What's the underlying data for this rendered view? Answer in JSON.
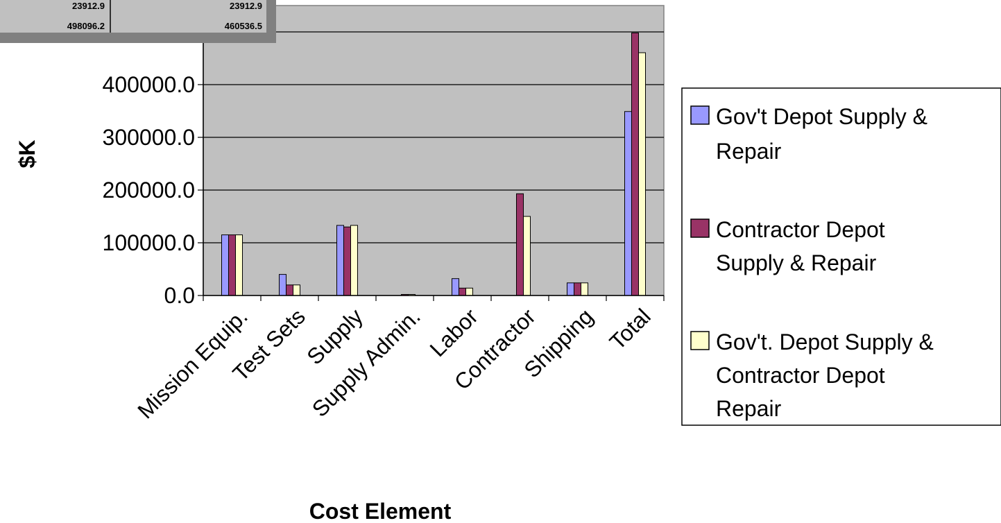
{
  "chart_data": {
    "type": "bar",
    "title": "",
    "xlabel": "Cost Element",
    "ylabel": "$K",
    "ylim": [
      0,
      550000
    ],
    "yticks": [
      "0.0",
      "100000.0",
      "200000.0",
      "300000.0",
      "400000.0",
      "500000.0"
    ],
    "categories": [
      "Mission Equip.",
      "Test Sets",
      "Supply",
      "Supply Admin.",
      "Labor",
      "Contractor",
      "Shipping",
      "Total"
    ],
    "series": [
      {
        "name": "Gov't Depot Supply & Repair",
        "color": "#9999ff",
        "values": [
          115000,
          40000,
          133000,
          0,
          32000,
          0,
          23912.9,
          349000
        ]
      },
      {
        "name": "Contractor Depot Supply & Repair",
        "color": "#993366",
        "values": [
          115000,
          20000,
          130000,
          2000,
          14000,
          193000,
          23912.9,
          498096.2
        ]
      },
      {
        "name": "Gov't. Depot Supply & Contractor Depot Repair",
        "color": "#ffffcc",
        "values": [
          115000,
          20000,
          133000,
          2000,
          14000,
          150000,
          23912.9,
          460536.5
        ]
      }
    ],
    "grid": true,
    "plot_background": "#c0c0c0",
    "legend_position": "right"
  },
  "data_table": {
    "rows": [
      [
        "23912.9",
        "23912.9"
      ],
      [
        "498096.2",
        "460536.5"
      ]
    ]
  },
  "legend": {
    "items": [
      {
        "lines": [
          "Gov't Depot Supply &",
          "Repair"
        ]
      },
      {
        "lines": [
          "Contractor Depot",
          "Supply & Repair"
        ]
      },
      {
        "lines": [
          "Gov't. Depot Supply &",
          "Contractor Depot",
          "Repair"
        ]
      }
    ]
  }
}
